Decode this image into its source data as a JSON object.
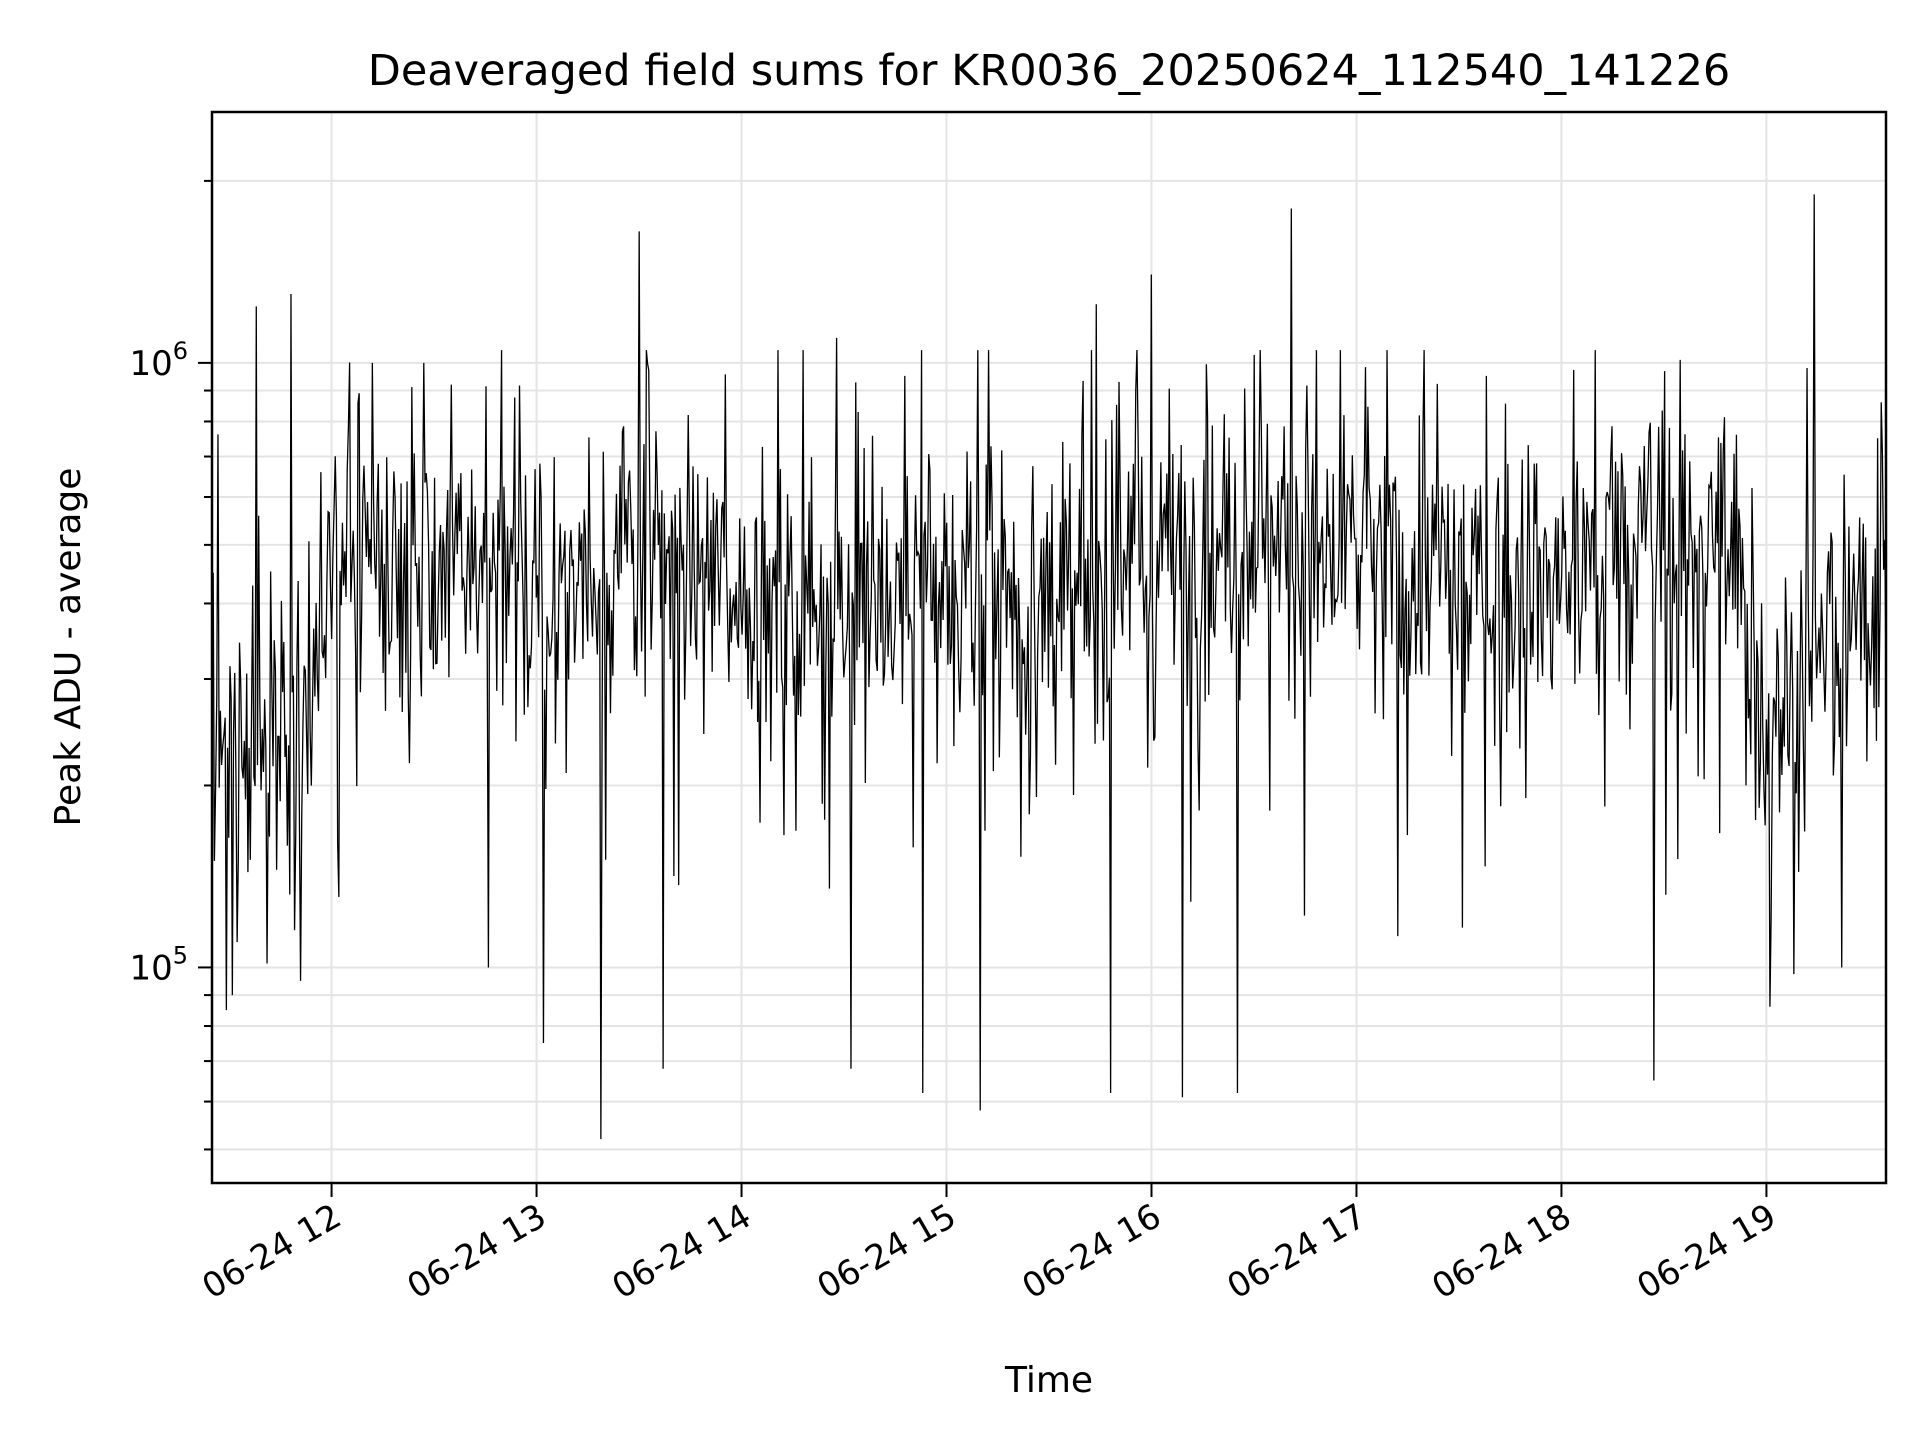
{
  "chart_data": {
    "type": "line",
    "title": "Deaveraged field sums for KR0036_20250624_112540_141226",
    "xlabel": "Time",
    "ylabel": "Peak ADU - average",
    "x_ticks": [
      "06-24 12",
      "06-24 13",
      "06-24 14",
      "06-24 15",
      "06-24 16",
      "06-24 17",
      "06-24 18",
      "06-24 19"
    ],
    "x_range": [
      "2025-06-24 11:25",
      "2025-06-24 19:35"
    ],
    "y_scale": "log",
    "y_ticks": [
      {
        "value": 100000,
        "base": "10",
        "exp": "5"
      },
      {
        "value": 1000000,
        "base": "10",
        "exp": "6"
      }
    ],
    "ylim": [
      44000,
      2600000
    ],
    "grid": true,
    "legend": "none",
    "line_color": "#000000",
    "series_summary": {
      "typical_min": 100000,
      "typical_max": 1000000,
      "median": 420000,
      "max_spike": {
        "time": "2025-06-24 19:14",
        "value": 1900000
      },
      "min_dip": {
        "time": "2025-06-24 13:19",
        "value": 52000
      }
    },
    "trend": [
      {
        "time": "2025-06-24 11:25",
        "value": 230000
      },
      {
        "time": "2025-06-24 11:45",
        "value": 250000
      },
      {
        "time": "2025-06-24 12:05",
        "value": 470000
      },
      {
        "time": "2025-06-24 12:30",
        "value": 480000
      },
      {
        "time": "2025-06-24 13:00",
        "value": 400000
      },
      {
        "time": "2025-06-24 13:30",
        "value": 500000
      },
      {
        "time": "2025-06-24 14:00",
        "value": 420000
      },
      {
        "time": "2025-06-24 14:30",
        "value": 400000
      },
      {
        "time": "2025-06-24 15:00",
        "value": 430000
      },
      {
        "time": "2025-06-24 15:30",
        "value": 400000
      },
      {
        "time": "2025-06-24 16:00",
        "value": 450000
      },
      {
        "time": "2025-06-24 16:30",
        "value": 540000
      },
      {
        "time": "2025-06-24 17:00",
        "value": 460000
      },
      {
        "time": "2025-06-24 17:30",
        "value": 440000
      },
      {
        "time": "2025-06-24 18:00",
        "value": 440000
      },
      {
        "time": "2025-06-24 18:30",
        "value": 500000
      },
      {
        "time": "2025-06-24 18:50",
        "value": 460000
      },
      {
        "time": "2025-06-24 19:00",
        "value": 260000
      },
      {
        "time": "2025-06-24 19:15",
        "value": 330000
      },
      {
        "time": "2025-06-24 19:35",
        "value": 420000
      }
    ],
    "spikes": [
      {
        "time": "2025-06-24 11:31",
        "value": 90000
      },
      {
        "time": "2025-06-24 11:38",
        "value": 1240000
      },
      {
        "time": "2025-06-24 11:48",
        "value": 1300000
      },
      {
        "time": "2025-06-24 11:51",
        "value": 95000
      },
      {
        "time": "2025-06-24 12:12",
        "value": 1000000
      },
      {
        "time": "2025-06-24 12:27",
        "value": 1000000
      },
      {
        "time": "2025-06-24 12:46",
        "value": 100000
      },
      {
        "time": "2025-06-24 13:02",
        "value": 75000
      },
      {
        "time": "2025-06-24 13:19",
        "value": 52000
      },
      {
        "time": "2025-06-24 13:30",
        "value": 1650000
      },
      {
        "time": "2025-06-24 13:37",
        "value": 68000
      },
      {
        "time": "2025-06-24 14:28",
        "value": 1100000
      },
      {
        "time": "2025-06-24 14:32",
        "value": 68000
      },
      {
        "time": "2025-06-24 14:53",
        "value": 62000
      },
      {
        "time": "2025-06-24 15:10",
        "value": 58000
      },
      {
        "time": "2025-06-24 15:44",
        "value": 1250000
      },
      {
        "time": "2025-06-24 15:48",
        "value": 62000
      },
      {
        "time": "2025-06-24 16:00",
        "value": 1400000
      },
      {
        "time": "2025-06-24 16:09",
        "value": 61000
      },
      {
        "time": "2025-06-24 16:25",
        "value": 62000
      },
      {
        "time": "2025-06-24 16:41",
        "value": 1800000
      },
      {
        "time": "2025-06-24 18:27",
        "value": 65000
      },
      {
        "time": "2025-06-24 19:14",
        "value": 1900000
      },
      {
        "time": "2025-06-24 19:22",
        "value": 100000
      }
    ],
    "sample_count": 1400
  }
}
